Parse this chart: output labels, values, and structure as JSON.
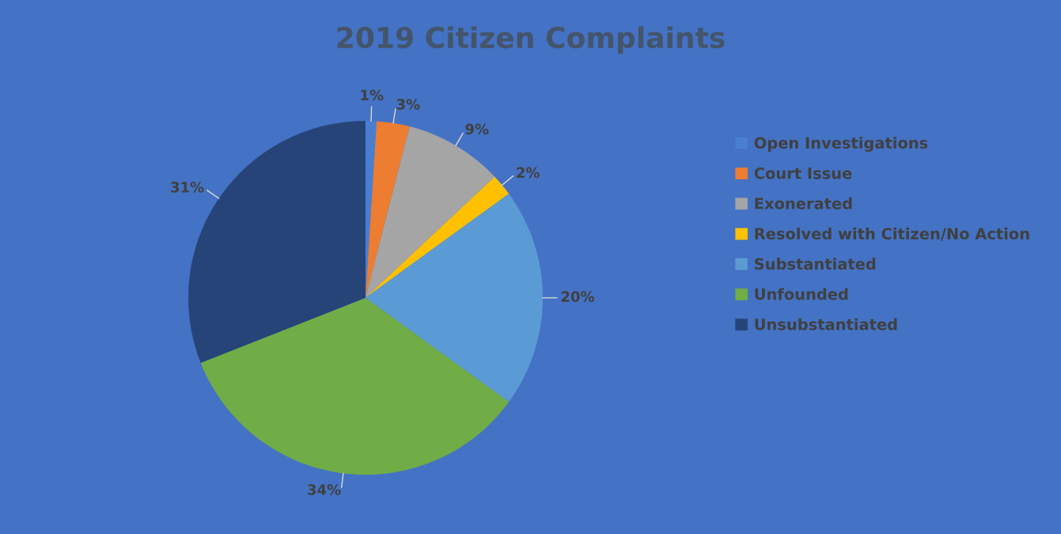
{
  "chart_data": {
    "type": "pie",
    "title": "2019 Citizen Complaints",
    "categories": [
      "Open Investigations",
      "Court Issue",
      "Exonerated",
      "Resolved with Citizen/No Action",
      "Substantiated",
      "Unfounded",
      "Unsubstantiated"
    ],
    "values": [
      1,
      3,
      9,
      2,
      20,
      34,
      31
    ],
    "value_labels": [
      "1%",
      "3%",
      "9%",
      "2%",
      "20%",
      "34%",
      "31%"
    ],
    "colors": [
      "#4a7fd0",
      "#ed7d31",
      "#a5a5a5",
      "#ffc000",
      "#5b9bd5",
      "#70ad47",
      "#264478"
    ],
    "legend": "right"
  }
}
